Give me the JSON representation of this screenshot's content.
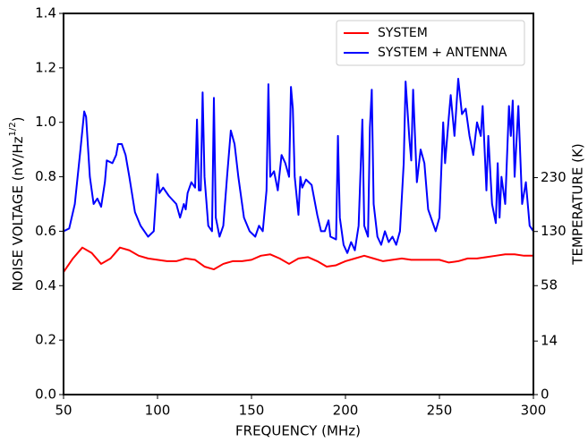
{
  "chart_data": {
    "type": "line",
    "xlabel": "FREQUENCY (MHz)",
    "ylabel": [
      "NOISE VOLTAGE (nV/Hz",
      "1/2",
      ")"
    ],
    "y2label": "TEMPERATURE (K)",
    "xlim": [
      50,
      300
    ],
    "xticks": [
      50,
      100,
      150,
      200,
      250,
      300
    ],
    "ylim": [
      0,
      1.4
    ],
    "yticks": [
      {
        "value": 0,
        "label": "0.0"
      },
      0.2,
      0.4,
      0.6,
      0.8,
      {
        "value": 1,
        "label": "1.0"
      },
      1.2,
      1.4
    ],
    "y2lim": [
      0,
      710
    ],
    "y2scale": "sqrt",
    "y2ticks": [
      0,
      14,
      58,
      130,
      230
    ],
    "legend": "upper right",
    "grid": false,
    "series": [
      {
        "name": "SYSTEM",
        "color": "#ff0000",
        "x": [
          50,
          55,
          60,
          65,
          70,
          75,
          80,
          85,
          90,
          95,
          100,
          105,
          110,
          115,
          120,
          125,
          130,
          135,
          140,
          145,
          150,
          155,
          160,
          165,
          170,
          175,
          180,
          185,
          190,
          195,
          200,
          205,
          210,
          215,
          220,
          225,
          230,
          235,
          240,
          245,
          250,
          255,
          260,
          265,
          270,
          275,
          280,
          285,
          290,
          295,
          300
        ],
        "values": [
          0.45,
          0.5,
          0.54,
          0.52,
          0.48,
          0.5,
          0.54,
          0.53,
          0.51,
          0.5,
          0.495,
          0.49,
          0.49,
          0.5,
          0.495,
          0.47,
          0.46,
          0.48,
          0.49,
          0.49,
          0.495,
          0.51,
          0.515,
          0.5,
          0.48,
          0.5,
          0.505,
          0.49,
          0.47,
          0.475,
          0.49,
          0.5,
          0.51,
          0.5,
          0.49,
          0.495,
          0.5,
          0.495,
          0.495,
          0.495,
          0.495,
          0.485,
          0.49,
          0.5,
          0.5,
          0.505,
          0.51,
          0.515,
          0.515,
          0.51,
          0.51
        ]
      },
      {
        "name": "SYSTEM + ANTENNA",
        "color": "#0000ff",
        "x": [
          50,
          53,
          56,
          59,
          61,
          62,
          64,
          66,
          68,
          70,
          72,
          73,
          76,
          78,
          79,
          81,
          83,
          85,
          88,
          91,
          95,
          98,
          100,
          101,
          103,
          106,
          110,
          112,
          114,
          115,
          116,
          118,
          120,
          121,
          122,
          123,
          124,
          125,
          127,
          129,
          130,
          131,
          133,
          135,
          137,
          139,
          141,
          143,
          146,
          149,
          152,
          154,
          156,
          158,
          159,
          160,
          162,
          164,
          166,
          168,
          170,
          171,
          172,
          173,
          175,
          176,
          177,
          179,
          182,
          185,
          187,
          189,
          191,
          192,
          195,
          196,
          197,
          199,
          201,
          203,
          205,
          207,
          209,
          210,
          212,
          213,
          214,
          215,
          217,
          219,
          221,
          223,
          225,
          227,
          229,
          231,
          232,
          234,
          235,
          236,
          238,
          240,
          242,
          244,
          246,
          248,
          250,
          252,
          253,
          255,
          256,
          258,
          260,
          262,
          264,
          266,
          268,
          270,
          272,
          273,
          275,
          276,
          278,
          280,
          281,
          282,
          283,
          285,
          287,
          288,
          289,
          290,
          292,
          294,
          296,
          298,
          300
        ],
        "values": [
          0.6,
          0.61,
          0.7,
          0.9,
          1.04,
          1.02,
          0.8,
          0.7,
          0.72,
          0.69,
          0.78,
          0.86,
          0.85,
          0.88,
          0.92,
          0.92,
          0.88,
          0.8,
          0.67,
          0.62,
          0.58,
          0.6,
          0.81,
          0.74,
          0.76,
          0.73,
          0.7,
          0.65,
          0.7,
          0.68,
          0.74,
          0.78,
          0.76,
          1.01,
          0.75,
          0.75,
          1.11,
          0.8,
          0.62,
          0.6,
          1.09,
          0.65,
          0.58,
          0.62,
          0.8,
          0.97,
          0.92,
          0.8,
          0.65,
          0.6,
          0.58,
          0.62,
          0.6,
          0.75,
          1.14,
          0.8,
          0.82,
          0.75,
          0.88,
          0.85,
          0.8,
          1.13,
          1.05,
          0.8,
          0.66,
          0.8,
          0.76,
          0.79,
          0.77,
          0.66,
          0.6,
          0.6,
          0.64,
          0.58,
          0.57,
          0.95,
          0.65,
          0.55,
          0.52,
          0.56,
          0.53,
          0.62,
          1.01,
          0.62,
          0.58,
          0.98,
          1.12,
          0.7,
          0.58,
          0.55,
          0.6,
          0.56,
          0.58,
          0.55,
          0.6,
          0.85,
          1.15,
          0.94,
          0.86,
          1.12,
          0.78,
          0.9,
          0.85,
          0.68,
          0.64,
          0.6,
          0.65,
          1.0,
          0.85,
          1.02,
          1.1,
          0.95,
          1.16,
          1.03,
          1.05,
          0.95,
          0.88,
          1.0,
          0.95,
          1.06,
          0.75,
          0.95,
          0.7,
          0.63,
          0.85,
          0.65,
          0.8,
          0.7,
          1.06,
          0.95,
          1.08,
          0.8,
          1.06,
          0.7,
          0.78,
          0.62,
          0.6
        ]
      }
    ]
  }
}
